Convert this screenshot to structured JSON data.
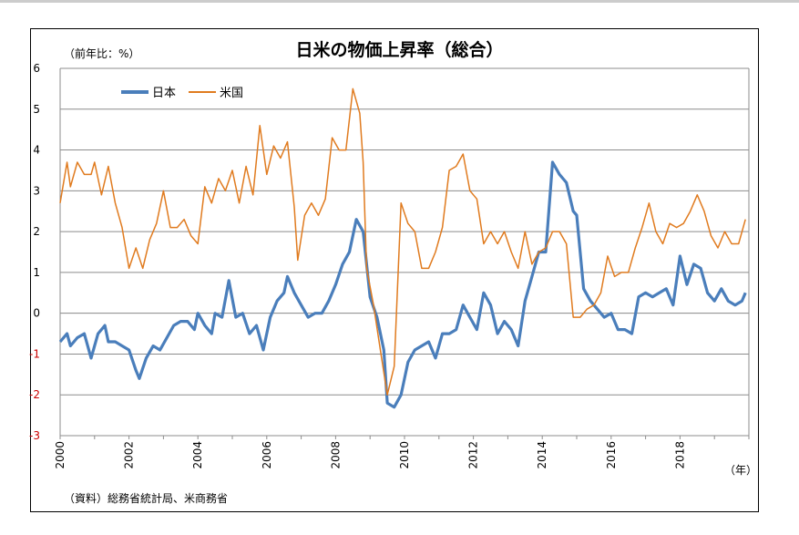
{
  "chart_data": {
    "type": "line",
    "title": "日米の物価上昇率（総合）",
    "ylabel": "（前年比：%）",
    "xlabel": "（年）",
    "source": "（資料）総務省統計局、米商務省",
    "ylim": [
      -3,
      6
    ],
    "yticks": [
      "6",
      "5",
      "4",
      "3",
      "2",
      "1",
      "0",
      "-1",
      "-2",
      "-3"
    ],
    "xlim": [
      2000,
      2020
    ],
    "xticks": [
      "2000",
      "2002",
      "2004",
      "2006",
      "2008",
      "2010",
      "2012",
      "2014",
      "2016",
      "2018"
    ],
    "grid": true,
    "legend_position": "top-left",
    "series": [
      {
        "name": "日本",
        "color": "#4a7ebb",
        "points": [
          [
            2000.0,
            -0.7
          ],
          [
            2000.2,
            -0.5
          ],
          [
            2000.3,
            -0.8
          ],
          [
            2000.5,
            -0.6
          ],
          [
            2000.7,
            -0.5
          ],
          [
            2000.9,
            -1.1
          ],
          [
            2001.1,
            -0.5
          ],
          [
            2001.3,
            -0.3
          ],
          [
            2001.4,
            -0.7
          ],
          [
            2001.6,
            -0.7
          ],
          [
            2001.8,
            -0.8
          ],
          [
            2002.0,
            -0.9
          ],
          [
            2002.2,
            -1.4
          ],
          [
            2002.3,
            -1.6
          ],
          [
            2002.5,
            -1.1
          ],
          [
            2002.7,
            -0.8
          ],
          [
            2002.9,
            -0.9
          ],
          [
            2003.1,
            -0.6
          ],
          [
            2003.3,
            -0.3
          ],
          [
            2003.5,
            -0.2
          ],
          [
            2003.7,
            -0.2
          ],
          [
            2003.9,
            -0.4
          ],
          [
            2004.0,
            0.0
          ],
          [
            2004.2,
            -0.3
          ],
          [
            2004.4,
            -0.5
          ],
          [
            2004.5,
            0.0
          ],
          [
            2004.7,
            -0.1
          ],
          [
            2004.9,
            0.8
          ],
          [
            2005.1,
            -0.1
          ],
          [
            2005.3,
            0.0
          ],
          [
            2005.5,
            -0.5
          ],
          [
            2005.7,
            -0.3
          ],
          [
            2005.9,
            -0.9
          ],
          [
            2006.1,
            -0.1
          ],
          [
            2006.3,
            0.3
          ],
          [
            2006.5,
            0.5
          ],
          [
            2006.6,
            0.9
          ],
          [
            2006.8,
            0.5
          ],
          [
            2007.0,
            0.2
          ],
          [
            2007.2,
            -0.1
          ],
          [
            2007.4,
            0.0
          ],
          [
            2007.6,
            0.0
          ],
          [
            2007.8,
            0.3
          ],
          [
            2008.0,
            0.7
          ],
          [
            2008.2,
            1.2
          ],
          [
            2008.4,
            1.5
          ],
          [
            2008.6,
            2.3
          ],
          [
            2008.8,
            2.0
          ],
          [
            2009.0,
            0.4
          ],
          [
            2009.2,
            -0.1
          ],
          [
            2009.4,
            -0.9
          ],
          [
            2009.5,
            -2.2
          ],
          [
            2009.7,
            -2.3
          ],
          [
            2009.9,
            -2.0
          ],
          [
            2010.1,
            -1.2
          ],
          [
            2010.3,
            -0.9
          ],
          [
            2010.5,
            -0.8
          ],
          [
            2010.7,
            -0.7
          ],
          [
            2010.9,
            -1.1
          ],
          [
            2011.1,
            -0.5
          ],
          [
            2011.3,
            -0.5
          ],
          [
            2011.5,
            -0.4
          ],
          [
            2011.7,
            0.2
          ],
          [
            2011.9,
            -0.1
          ],
          [
            2012.1,
            -0.4
          ],
          [
            2012.3,
            0.5
          ],
          [
            2012.5,
            0.2
          ],
          [
            2012.7,
            -0.5
          ],
          [
            2012.9,
            -0.2
          ],
          [
            2013.1,
            -0.4
          ],
          [
            2013.3,
            -0.8
          ],
          [
            2013.5,
            0.3
          ],
          [
            2013.7,
            0.9
          ],
          [
            2013.9,
            1.5
          ],
          [
            2014.1,
            1.5
          ],
          [
            2014.3,
            3.7
          ],
          [
            2014.5,
            3.4
          ],
          [
            2014.7,
            3.2
          ],
          [
            2014.9,
            2.5
          ],
          [
            2015.0,
            2.4
          ],
          [
            2015.2,
            0.6
          ],
          [
            2015.4,
            0.3
          ],
          [
            2015.6,
            0.1
          ],
          [
            2015.8,
            -0.1
          ],
          [
            2016.0,
            0.0
          ],
          [
            2016.2,
            -0.4
          ],
          [
            2016.4,
            -0.4
          ],
          [
            2016.6,
            -0.5
          ],
          [
            2016.8,
            0.4
          ],
          [
            2017.0,
            0.5
          ],
          [
            2017.2,
            0.4
          ],
          [
            2017.4,
            0.5
          ],
          [
            2017.6,
            0.6
          ],
          [
            2017.8,
            0.2
          ],
          [
            2018.0,
            1.4
          ],
          [
            2018.2,
            0.7
          ],
          [
            2018.4,
            1.2
          ],
          [
            2018.6,
            1.1
          ],
          [
            2018.8,
            0.5
          ],
          [
            2019.0,
            0.3
          ],
          [
            2019.2,
            0.6
          ],
          [
            2019.4,
            0.3
          ],
          [
            2019.6,
            0.2
          ],
          [
            2019.8,
            0.3
          ],
          [
            2019.9,
            0.5
          ]
        ]
      },
      {
        "name": "米国",
        "color": "#e07b1f",
        "points": [
          [
            2000.0,
            2.7
          ],
          [
            2000.2,
            3.7
          ],
          [
            2000.3,
            3.1
          ],
          [
            2000.5,
            3.7
          ],
          [
            2000.7,
            3.4
          ],
          [
            2000.9,
            3.4
          ],
          [
            2001.0,
            3.7
          ],
          [
            2001.2,
            2.9
          ],
          [
            2001.4,
            3.6
          ],
          [
            2001.6,
            2.7
          ],
          [
            2001.8,
            2.1
          ],
          [
            2002.0,
            1.1
          ],
          [
            2002.2,
            1.6
          ],
          [
            2002.4,
            1.1
          ],
          [
            2002.6,
            1.8
          ],
          [
            2002.8,
            2.2
          ],
          [
            2003.0,
            3.0
          ],
          [
            2003.2,
            2.1
          ],
          [
            2003.4,
            2.1
          ],
          [
            2003.6,
            2.3
          ],
          [
            2003.8,
            1.9
          ],
          [
            2004.0,
            1.7
          ],
          [
            2004.2,
            3.1
          ],
          [
            2004.4,
            2.7
          ],
          [
            2004.6,
            3.3
          ],
          [
            2004.8,
            3.0
          ],
          [
            2005.0,
            3.5
          ],
          [
            2005.2,
            2.7
          ],
          [
            2005.4,
            3.6
          ],
          [
            2005.6,
            2.9
          ],
          [
            2005.8,
            4.6
          ],
          [
            2006.0,
            3.4
          ],
          [
            2006.2,
            4.1
          ],
          [
            2006.4,
            3.8
          ],
          [
            2006.6,
            4.2
          ],
          [
            2006.8,
            2.6
          ],
          [
            2006.9,
            1.3
          ],
          [
            2007.1,
            2.4
          ],
          [
            2007.3,
            2.7
          ],
          [
            2007.5,
            2.4
          ],
          [
            2007.7,
            2.8
          ],
          [
            2007.9,
            4.3
          ],
          [
            2008.1,
            4.0
          ],
          [
            2008.3,
            4.0
          ],
          [
            2008.5,
            5.5
          ],
          [
            2008.7,
            4.9
          ],
          [
            2008.8,
            3.7
          ],
          [
            2008.9,
            1.1
          ],
          [
            2009.1,
            0.2
          ],
          [
            2009.3,
            -0.9
          ],
          [
            2009.5,
            -2.0
          ],
          [
            2009.7,
            -1.3
          ],
          [
            2009.9,
            2.7
          ],
          [
            2010.1,
            2.2
          ],
          [
            2010.3,
            2.0
          ],
          [
            2010.5,
            1.1
          ],
          [
            2010.7,
            1.1
          ],
          [
            2010.9,
            1.5
          ],
          [
            2011.1,
            2.1
          ],
          [
            2011.3,
            3.5
          ],
          [
            2011.5,
            3.6
          ],
          [
            2011.7,
            3.9
          ],
          [
            2011.9,
            3.0
          ],
          [
            2012.1,
            2.8
          ],
          [
            2012.3,
            1.7
          ],
          [
            2012.5,
            2.0
          ],
          [
            2012.7,
            1.7
          ],
          [
            2012.9,
            2.0
          ],
          [
            2013.1,
            1.5
          ],
          [
            2013.3,
            1.1
          ],
          [
            2013.5,
            2.0
          ],
          [
            2013.7,
            1.2
          ],
          [
            2013.9,
            1.5
          ],
          [
            2014.1,
            1.6
          ],
          [
            2014.3,
            2.0
          ],
          [
            2014.5,
            2.0
          ],
          [
            2014.7,
            1.7
          ],
          [
            2014.9,
            -0.1
          ],
          [
            2015.1,
            -0.1
          ],
          [
            2015.3,
            0.1
          ],
          [
            2015.5,
            0.2
          ],
          [
            2015.7,
            0.5
          ],
          [
            2015.9,
            1.4
          ],
          [
            2016.1,
            0.9
          ],
          [
            2016.3,
            1.0
          ],
          [
            2016.5,
            1.0
          ],
          [
            2016.7,
            1.6
          ],
          [
            2016.9,
            2.1
          ],
          [
            2017.1,
            2.7
          ],
          [
            2017.3,
            2.0
          ],
          [
            2017.5,
            1.7
          ],
          [
            2017.7,
            2.2
          ],
          [
            2017.9,
            2.1
          ],
          [
            2018.1,
            2.2
          ],
          [
            2018.3,
            2.5
          ],
          [
            2018.5,
            2.9
          ],
          [
            2018.7,
            2.5
          ],
          [
            2018.9,
            1.9
          ],
          [
            2019.1,
            1.6
          ],
          [
            2019.3,
            2.0
          ],
          [
            2019.5,
            1.7
          ],
          [
            2019.7,
            1.7
          ],
          [
            2019.9,
            2.3
          ]
        ]
      }
    ]
  }
}
